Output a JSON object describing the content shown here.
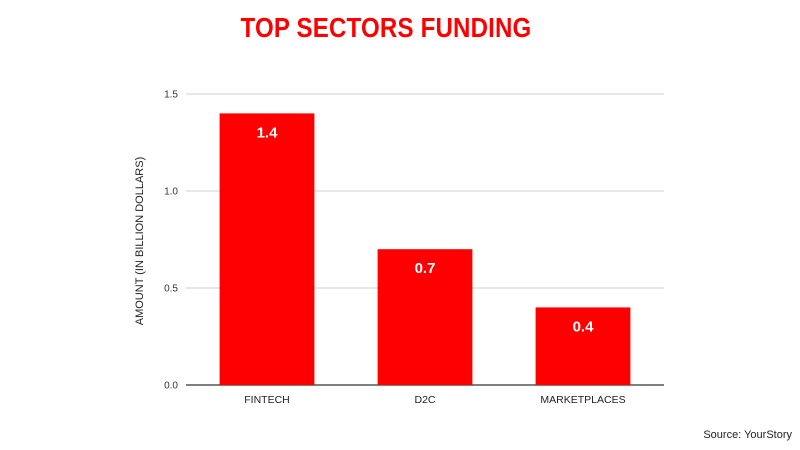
{
  "chart_data": {
    "type": "bar",
    "title": "TOP SECTORS FUNDING",
    "xlabel": "",
    "ylabel": "AMOUNT (IN BILLION DOLLARS)",
    "categories": [
      "FINTECH",
      "D2C",
      "MARKETPLACES"
    ],
    "values": [
      1.4,
      0.7,
      0.4
    ],
    "data_labels": [
      "1.4",
      "0.7",
      "0.4"
    ],
    "ylim": [
      0,
      1.5
    ],
    "yticks": [
      0,
      0.5,
      1.0,
      1.5
    ],
    "ytick_labels": [
      "0.0",
      "0.5",
      "1.0",
      "1.5"
    ],
    "grid": true,
    "legend": "none",
    "bar_color": "#ff0000",
    "title_color": "#ff0000"
  },
  "source": "Source: YourStory"
}
